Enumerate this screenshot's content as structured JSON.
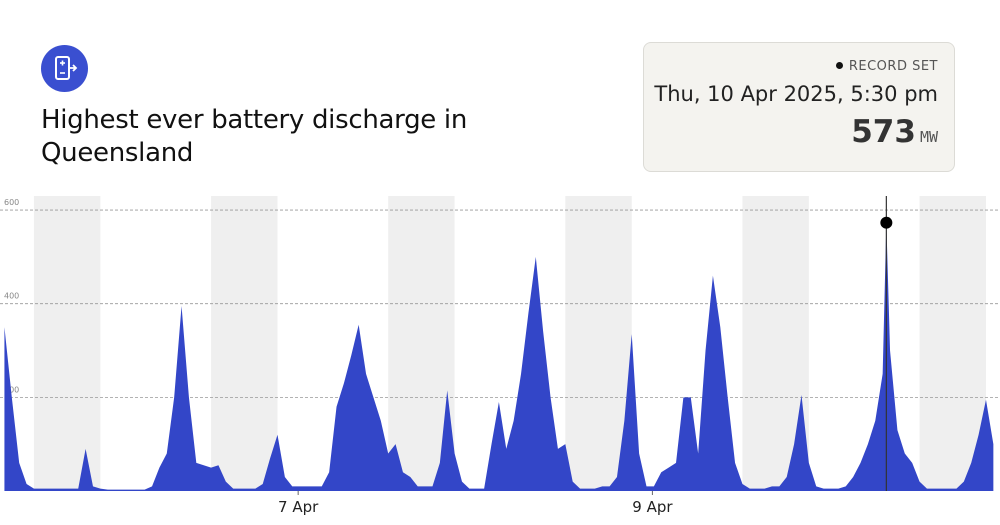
{
  "chart_data": {
    "type": "area",
    "title": "Highest ever battery discharge in Queensland",
    "color": "#3346c8",
    "band_color": "#efefef",
    "grid": true,
    "xlim": [
      17.4,
      152.9
    ],
    "ylim": [
      0,
      630
    ],
    "xticks": [
      {
        "value": 57.8,
        "label": "7 Apr"
      },
      {
        "value": 105.8,
        "label": "9 Apr"
      }
    ],
    "yticks": [
      200,
      400,
      600
    ],
    "shaded": [
      [
        22,
        31
      ],
      [
        46,
        55
      ],
      [
        70,
        79
      ],
      [
        94,
        103
      ],
      [
        118,
        127
      ],
      [
        142,
        151
      ]
    ],
    "x": [
      18,
      19,
      20,
      21,
      22,
      23,
      24,
      25,
      26,
      27,
      28,
      29,
      30,
      31,
      32,
      33,
      34,
      35,
      36,
      37,
      38,
      39,
      40,
      41,
      42,
      43,
      44,
      45,
      46,
      47,
      48,
      49,
      50,
      51,
      52,
      53,
      54,
      55,
      56,
      57,
      58,
      59,
      60,
      61,
      62,
      63,
      64,
      65,
      66,
      67,
      68,
      69,
      70,
      71,
      72,
      73,
      74,
      75,
      76,
      77,
      78,
      79,
      80,
      81,
      82,
      83,
      84,
      85,
      86,
      87,
      88,
      89,
      90,
      91,
      92,
      93,
      94,
      95,
      96,
      97,
      98,
      99,
      100,
      101,
      102,
      103,
      104,
      105,
      106,
      107,
      108,
      109,
      110,
      111,
      112,
      113,
      114,
      115,
      116,
      117,
      118,
      119,
      120,
      121,
      122,
      123,
      124,
      125,
      126,
      127,
      128,
      129,
      130,
      131,
      132,
      133,
      134,
      135,
      136,
      137,
      137.5,
      138,
      139,
      140,
      141,
      142,
      143,
      144,
      145,
      146,
      147,
      148,
      149,
      150,
      151,
      152
    ],
    "values": [
      350,
      200,
      60,
      15,
      5,
      5,
      5,
      5,
      5,
      5,
      5,
      90,
      10,
      5,
      3,
      3,
      3,
      3,
      3,
      3,
      10,
      50,
      80,
      200,
      395,
      200,
      60,
      55,
      50,
      55,
      20,
      5,
      5,
      5,
      5,
      15,
      70,
      120,
      30,
      10,
      10,
      10,
      10,
      10,
      40,
      180,
      230,
      290,
      355,
      250,
      200,
      150,
      80,
      100,
      40,
      30,
      10,
      10,
      10,
      60,
      215,
      80,
      20,
      5,
      5,
      5,
      100,
      190,
      90,
      150,
      250,
      380,
      500,
      340,
      200,
      90,
      100,
      20,
      5,
      5,
      5,
      10,
      10,
      30,
      150,
      335,
      80,
      10,
      10,
      40,
      50,
      60,
      200,
      200,
      80,
      300,
      460,
      350,
      200,
      60,
      15,
      5,
      5,
      5,
      10,
      10,
      30,
      100,
      205,
      60,
      10,
      5,
      5,
      5,
      10,
      30,
      60,
      100,
      150,
      250,
      573,
      300,
      130,
      80,
      60,
      20,
      5,
      5,
      5,
      5,
      5,
      20,
      60,
      120,
      195,
      100
    ],
    "record_index": 120,
    "annotation": {
      "label": "RECORD SET",
      "time": "Thu, 10 Apr 2025, 5:30 pm",
      "unit": "MW"
    }
  }
}
